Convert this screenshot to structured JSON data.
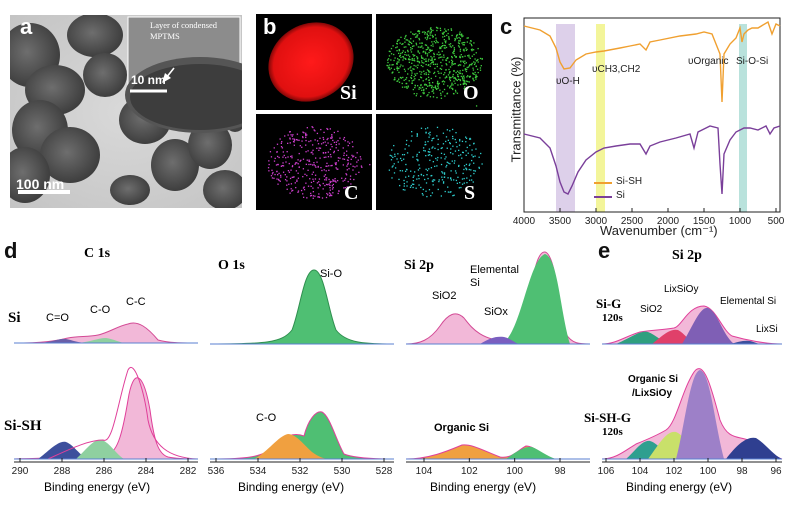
{
  "panel_labels": {
    "a": "a",
    "b": "b",
    "c": "c",
    "d": "d",
    "e": "e"
  },
  "panel_a": {
    "inset_caption_line1": "Layer of condensed",
    "inset_caption_line2": "MPTMS",
    "inset_scale": "10 nm",
    "scale_bar": "100 nm"
  },
  "panel_b": {
    "maps": [
      {
        "label": "Si",
        "color": "#ff2a2a"
      },
      {
        "label": "O",
        "color": "#3fcf3f"
      },
      {
        "label": "C",
        "color": "#cf3fcf"
      },
      {
        "label": "S",
        "color": "#2fcfcf"
      }
    ]
  },
  "panel_c": {
    "chart_data": {
      "type": "line",
      "title": "",
      "xlabel": "Wavenumber (cm⁻¹)",
      "ylabel": "Transmittance (%)",
      "xlim": [
        4000,
        500
      ],
      "x_ticks": [
        "4000",
        "3500",
        "3000",
        "2500",
        "2000",
        "1500",
        "1000",
        "500"
      ],
      "series": [
        {
          "name": "Si-SH",
          "color": "#f0a030"
        },
        {
          "name": "Si",
          "color": "#7a3f9a"
        }
      ],
      "annotations": [
        "υO-H",
        "υCH3,CH2",
        "υOrganic",
        "Si-O-Si"
      ],
      "highlight_bands_cm-1": [
        [
          3600,
          3300
        ],
        [
          3000,
          2900
        ],
        [
          950,
          880
        ]
      ]
    }
  },
  "panel_d": {
    "spectra": [
      {
        "title": "C 1s",
        "ticks": [
          "290",
          "288",
          "286",
          "284",
          "282"
        ],
        "xlabel": "Binding energy (eV)",
        "top_labels": [
          "C=O",
          "C-O",
          "C-C"
        ],
        "bottom_labels": []
      },
      {
        "title": "O 1s",
        "ticks": [
          "536",
          "534",
          "532",
          "530",
          "528"
        ],
        "xlabel": "Binding energy (eV)",
        "top_labels": [
          "Si-O"
        ],
        "bottom_labels": [
          "C-O"
        ]
      },
      {
        "title": "Si 2p",
        "ticks": [
          "104",
          "102",
          "100",
          "98"
        ],
        "xlabel": "Binding energy (eV)",
        "top_labels": [
          "SiO2",
          "Elemental Si",
          "SiOx"
        ],
        "bottom_labels": [
          "Organic Si"
        ]
      }
    ],
    "row_labels": [
      "Si",
      "Si-SH"
    ]
  },
  "panel_e": {
    "title": "Si 2p",
    "ticks": [
      "106",
      "104",
      "102",
      "100",
      "98",
      "96"
    ],
    "xlabel": "Binding energy (eV)",
    "top_row_label": "Si-G",
    "top_row_sub": "120s",
    "bottom_row_label": "Si-SH-G",
    "bottom_row_sub": "120s",
    "top_labels": [
      "SiO2",
      "LixSiOy",
      "Elemental Si",
      "LixSi"
    ],
    "bottom_labels": [
      "Organic Si",
      "/LixSiOy"
    ]
  }
}
